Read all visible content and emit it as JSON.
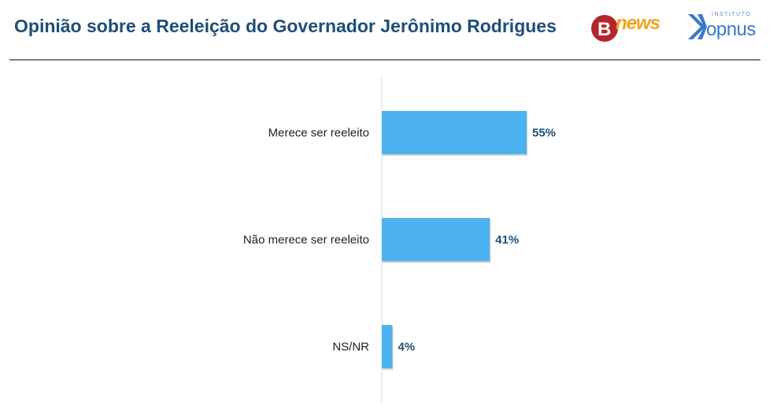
{
  "header": {
    "title": "Opinião sobre a Reeleição do Governador Jerônimo Rodrigues",
    "logo_bnews": "news",
    "logo_opnus_small": "INSTITUTO",
    "logo_opnus": "opnus"
  },
  "colors": {
    "bar": "#4db3f0",
    "title": "#1f4e79",
    "axis": "#d9d9d9"
  },
  "chart_data": {
    "type": "bar",
    "orientation": "horizontal",
    "title": "Opinião sobre a Reeleição do Governador Jerônimo Rodrigues",
    "categories": [
      "Merece ser reeleito",
      "Não merece ser reeleito",
      "NS/NR"
    ],
    "values": [
      55,
      41,
      4
    ],
    "value_labels": [
      "55%",
      "41%",
      "4%"
    ],
    "xlim": [
      0,
      100
    ],
    "grid": false,
    "legend": "none"
  }
}
